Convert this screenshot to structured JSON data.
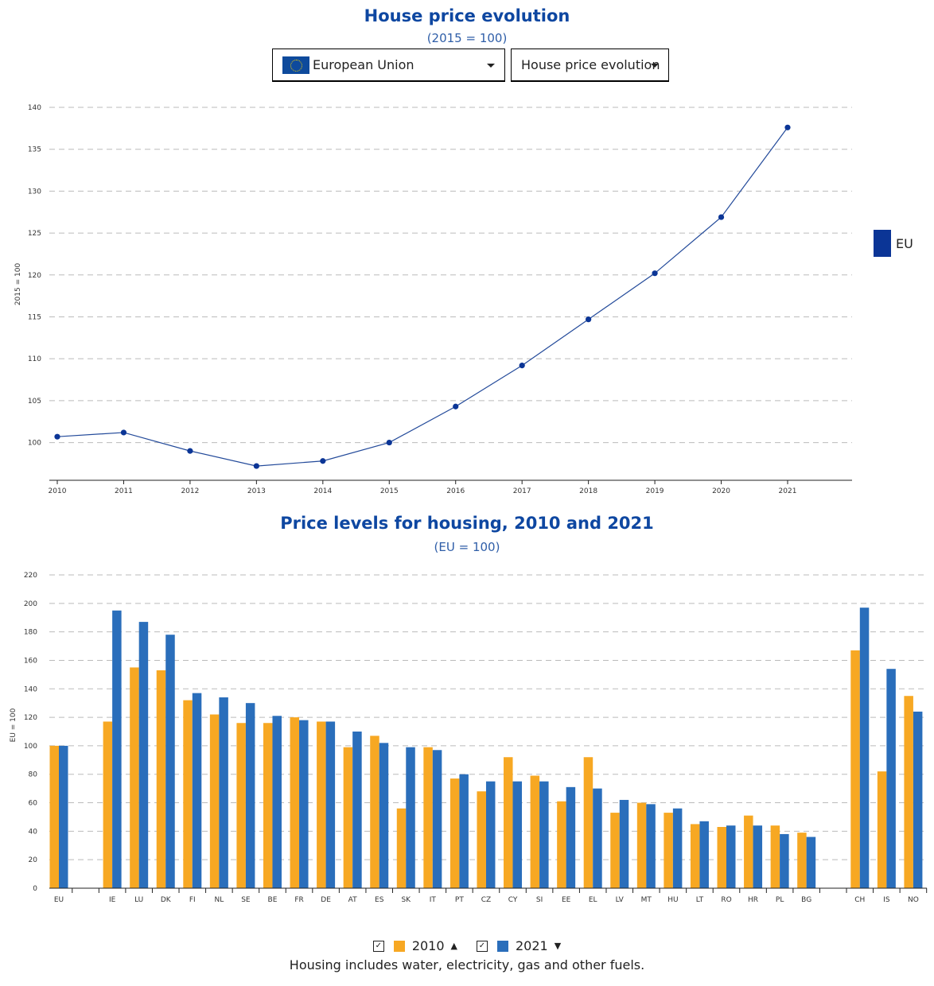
{
  "header": {
    "title": "House price evolution",
    "subtitle": "(2015 = 100)"
  },
  "controls": {
    "country_select": "European Union",
    "indicator_select": "House price evolution"
  },
  "colors": {
    "line": "#234a9a",
    "marker": "#0b3596",
    "bar_2010": "#f7a823",
    "bar_2021": "#2a6ebb",
    "title": "#0e47a1"
  },
  "chart_data": [
    {
      "type": "line",
      "title": "House price evolution",
      "subtitle": "(2015 = 100)",
      "ylabel": "2015 = 100",
      "xlabel": "",
      "ylim": [
        95.5,
        140
      ],
      "yticks": [
        100,
        105,
        110,
        115,
        120,
        125,
        130,
        135,
        140
      ],
      "grid": true,
      "legend_position": "right",
      "x": [
        "2010",
        "2011",
        "2012",
        "2013",
        "2014",
        "2015",
        "2016",
        "2017",
        "2018",
        "2019",
        "2020",
        "2021"
      ],
      "series": [
        {
          "name": "EU",
          "values": [
            100.7,
            101.2,
            99.0,
            97.2,
            97.8,
            100.0,
            104.3,
            109.2,
            114.7,
            120.2,
            126.9,
            137.6
          ]
        }
      ]
    },
    {
      "type": "bar",
      "title": "Price levels for housing, 2010 and 2021",
      "subtitle": "(EU = 100)",
      "ylabel": "EU = 100",
      "xlabel": "",
      "ylim": [
        0,
        220
      ],
      "yticks": [
        0,
        20,
        40,
        60,
        80,
        100,
        120,
        140,
        160,
        180,
        200,
        220
      ],
      "grid": true,
      "legend_position": "bottom",
      "categories": [
        "EU",
        "",
        "IE",
        "LU",
        "DK",
        "FI",
        "NL",
        "SE",
        "BE",
        "FR",
        "DE",
        "AT",
        "ES",
        "SK",
        "IT",
        "PT",
        "CZ",
        "CY",
        "SI",
        "EE",
        "EL",
        "LV",
        "MT",
        "HU",
        "LT",
        "RO",
        "HR",
        "PL",
        "BG",
        "",
        "CH",
        "IS",
        "NO"
      ],
      "series": [
        {
          "name": "2010",
          "values": [
            100,
            null,
            117,
            155,
            153,
            132,
            122,
            116,
            116,
            120,
            117,
            99,
            107,
            56,
            99,
            77,
            68,
            92,
            79,
            61,
            92,
            53,
            60,
            53,
            45,
            43,
            51,
            44,
            39,
            null,
            167,
            82,
            135
          ]
        },
        {
          "name": "2021",
          "values": [
            100,
            null,
            195,
            187,
            178,
            137,
            134,
            130,
            121,
            118,
            117,
            110,
            102,
            99,
            97,
            80,
            75,
            75,
            75,
            71,
            70,
            62,
            59,
            56,
            47,
            44,
            44,
            38,
            36,
            null,
            197,
            154,
            124
          ]
        }
      ],
      "note": "Housing includes water, electricity, gas and other fuels."
    }
  ]
}
